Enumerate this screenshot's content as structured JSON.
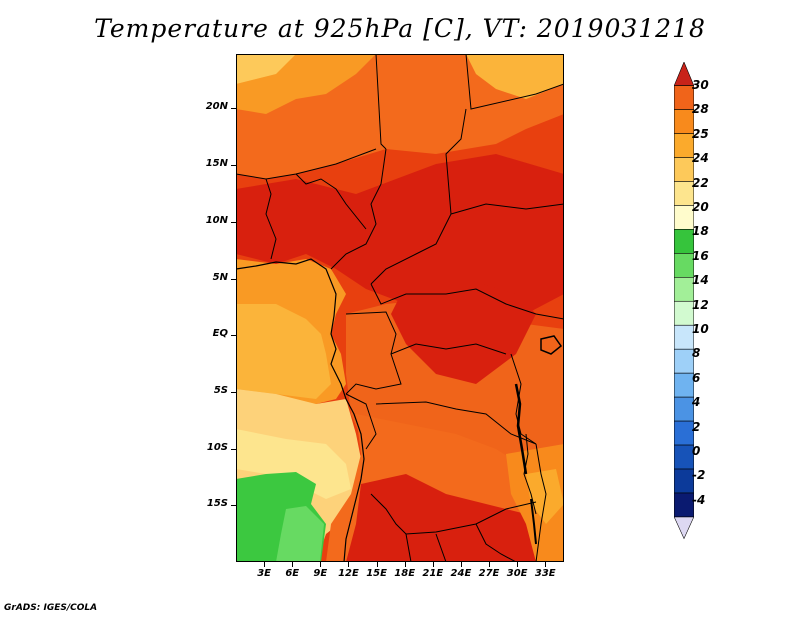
{
  "title": "Temperature at 925hPa [C], VT: 2019031218",
  "footer": "GrADS: IGES/COLA",
  "y_axis": {
    "labels": [
      "20N",
      "15N",
      "10N",
      "5N",
      "EQ",
      "5S",
      "10S",
      "15S"
    ],
    "values": [
      20,
      15,
      10,
      5,
      0,
      -5,
      -10,
      -15
    ],
    "range": [
      -20,
      24.8
    ]
  },
  "x_axis": {
    "labels": [
      "3E",
      "6E",
      "9E",
      "12E",
      "15E",
      "18E",
      "21E",
      "24E",
      "27E",
      "30E",
      "33E"
    ],
    "values": [
      3,
      6,
      9,
      12,
      15,
      18,
      21,
      24,
      27,
      30,
      33
    ],
    "range": [
      0,
      35
    ]
  },
  "colorbar": {
    "labels": [
      "30",
      "28",
      "25",
      "24",
      "22",
      "20",
      "18",
      "16",
      "14",
      "12",
      "10",
      "8",
      "6",
      "4",
      "2",
      "0",
      "-2",
      "-4"
    ],
    "colors": [
      "#e23a1c",
      "#f0641a",
      "#f88a1c",
      "#fbaa2c",
      "#fdc95a",
      "#fde58e",
      "#fffccc",
      "#36c43c",
      "#67da62",
      "#a2ef98",
      "#d2fad0",
      "#c8e6fb",
      "#9ed0f8",
      "#6fb3f0",
      "#4b93e4",
      "#2a6fd6",
      "#1753b8",
      "#0c3a9a",
      "#0a1a70"
    ],
    "top_arrow_color": "#c8231a",
    "bottom_arrow_color": "#ddd8f2"
  }
}
